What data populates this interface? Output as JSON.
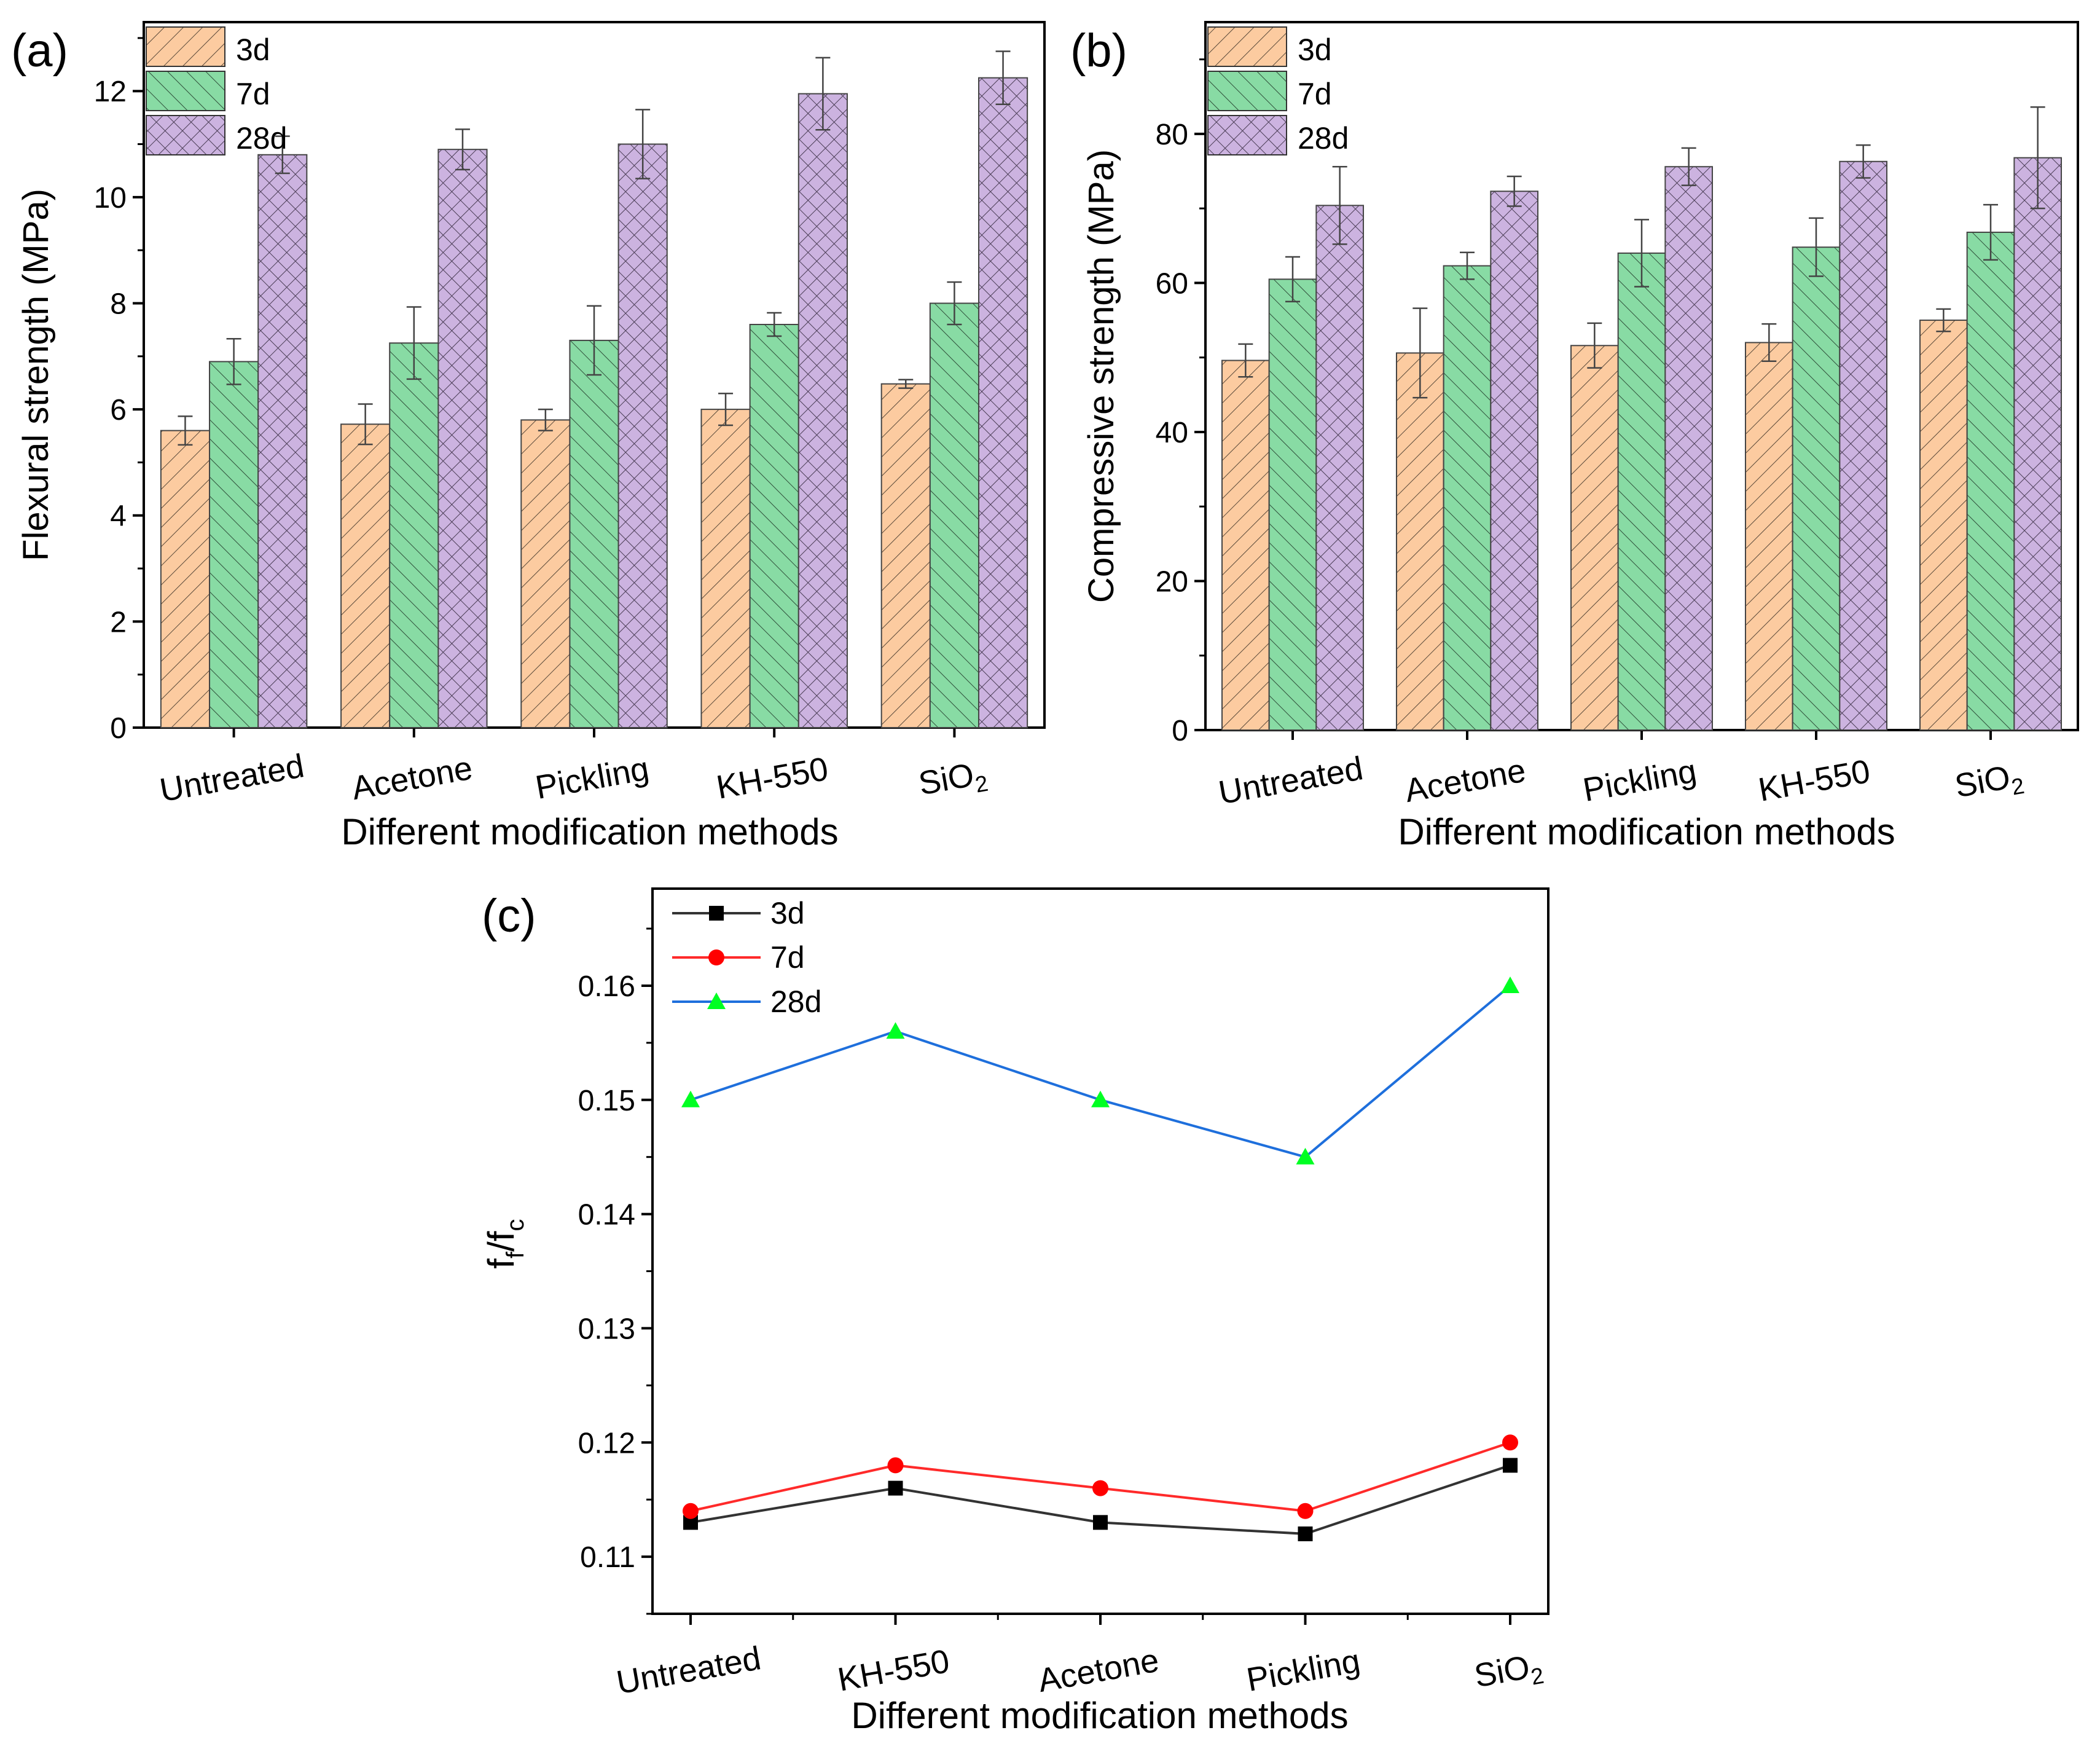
{
  "colors": {
    "s3d_fill": "#fccba0",
    "s7d_fill": "#88dba4",
    "s28d_fill": "#ccb3e0",
    "line_3d": "#333333",
    "line_7d": "#ff2a2a",
    "line_28d": "#1e6fdc",
    "marker_3d": "#000000",
    "marker_7d": "#ff0000",
    "marker_28d": "#00ff22"
  },
  "chart_data": [
    {
      "panel_label": "(a)",
      "type": "bar",
      "ylabel": "Flexural strength (MPa)",
      "xlabel": "Different modification methods",
      "categories": [
        "Untreated",
        "Acetone",
        "Pickling",
        "KH-550",
        "SiO2"
      ],
      "category_main": [
        "Untreated",
        "Acetone",
        "Pickling",
        "KH-550",
        "SiO"
      ],
      "category_sub": [
        "",
        "",
        "",
        "",
        "2"
      ],
      "ylim": [
        0,
        13.3
      ],
      "yticks": [
        "0",
        "2",
        "4",
        "6",
        "8",
        "10",
        "12"
      ],
      "legend": [
        "3d",
        "7d",
        "28d"
      ],
      "series": [
        {
          "name": "3d",
          "values": [
            5.6,
            5.72,
            5.8,
            6.0,
            6.48
          ],
          "errors": [
            0.27,
            0.38,
            0.2,
            0.3,
            0.08
          ]
        },
        {
          "name": "7d",
          "values": [
            6.9,
            7.25,
            7.3,
            7.6,
            8.0
          ],
          "errors": [
            0.43,
            0.68,
            0.65,
            0.22,
            0.4
          ]
        },
        {
          "name": "28d",
          "values": [
            10.8,
            10.9,
            11.0,
            11.95,
            12.25
          ],
          "errors": [
            0.35,
            0.38,
            0.65,
            0.68,
            0.5
          ]
        }
      ]
    },
    {
      "panel_label": "(b)",
      "type": "bar",
      "ylabel": "Compressive strength (MPa)",
      "xlabel": "Different modification methods",
      "categories": [
        "Untreated",
        "Acetone",
        "Pickling",
        "KH-550",
        "SiO2"
      ],
      "category_main": [
        "Untreated",
        "Acetone",
        "Pickling",
        "KH-550",
        "SiO"
      ],
      "category_sub": [
        "",
        "",
        "",
        "",
        "2"
      ],
      "ylim": [
        0,
        95
      ],
      "yticks": [
        "0",
        "20",
        "40",
        "60",
        "80"
      ],
      "legend": [
        "3d",
        "7d",
        "28d"
      ],
      "series": [
        {
          "name": "3d",
          "values": [
            49.6,
            50.6,
            51.6,
            52.0,
            55.0
          ],
          "errors": [
            2.2,
            6.0,
            3.0,
            2.5,
            1.5
          ]
        },
        {
          "name": "7d",
          "values": [
            60.5,
            62.3,
            64.0,
            64.8,
            66.8
          ],
          "errors": [
            3.0,
            1.8,
            4.5,
            3.9,
            3.7
          ]
        },
        {
          "name": "28d",
          "values": [
            70.4,
            72.3,
            75.6,
            76.3,
            76.8
          ],
          "errors": [
            5.2,
            2.0,
            2.5,
            2.2,
            6.8
          ]
        }
      ]
    },
    {
      "panel_label": "(c)",
      "type": "line",
      "ylabel_main": "f",
      "ylabel_sub1": "f",
      "ylabel_mid": "/f",
      "ylabel_sub2": "c",
      "xlabel": "Different modification methods",
      "categories": [
        "Untreated",
        "KH-550",
        "Acetone",
        "Pickling",
        "SiO2"
      ],
      "category_main": [
        "Untreated",
        "KH-550",
        "Acetone",
        "Pickling",
        "SiO"
      ],
      "category_sub": [
        "",
        "",
        "",
        "",
        "2"
      ],
      "ylim": [
        0.105,
        0.1685
      ],
      "yticks": [
        "0.11",
        "0.12",
        "0.13",
        "0.14",
        "0.15",
        "0.16"
      ],
      "legend": [
        "3d",
        "7d",
        "28d"
      ],
      "series": [
        {
          "name": "3d",
          "values": [
            0.113,
            0.116,
            0.113,
            0.112,
            0.118
          ]
        },
        {
          "name": "7d",
          "values": [
            0.114,
            0.118,
            0.116,
            0.114,
            0.12
          ]
        },
        {
          "name": "28d",
          "values": [
            0.15,
            0.156,
            0.15,
            0.145,
            0.16
          ]
        }
      ]
    }
  ]
}
